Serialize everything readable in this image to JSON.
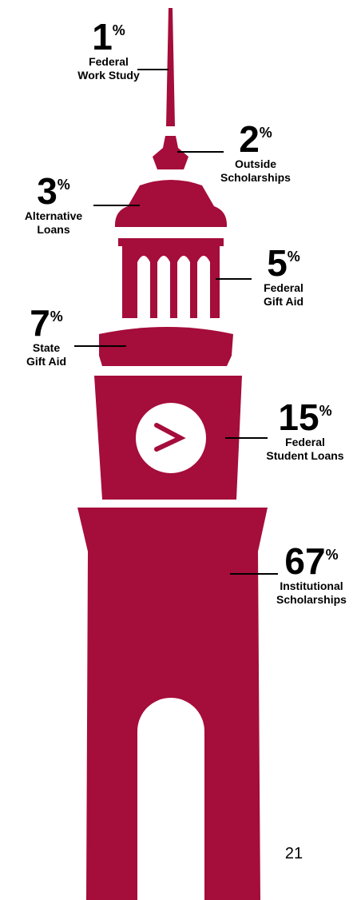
{
  "items": [
    {
      "value": "1",
      "unit": "%",
      "label_lines": [
        "Federal",
        "Work Study"
      ]
    },
    {
      "value": "2",
      "unit": "%",
      "label_lines": [
        "Outside",
        "Scholarships"
      ]
    },
    {
      "value": "3",
      "unit": "%",
      "label_lines": [
        "Alternative",
        "Loans"
      ]
    },
    {
      "value": "5",
      "unit": "%",
      "label_lines": [
        "Federal",
        "Gift Aid"
      ]
    },
    {
      "value": "7",
      "unit": "%",
      "label_lines": [
        "State",
        "Gift Aid"
      ]
    },
    {
      "value": "15",
      "unit": "%",
      "label_lines": [
        "Federal",
        "Student Loans"
      ]
    },
    {
      "value": "67",
      "unit": "%",
      "label_lines": [
        "Institutional",
        "Scholarships"
      ]
    }
  ],
  "page_number": "21"
}
